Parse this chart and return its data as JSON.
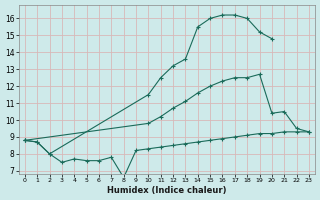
{
  "xlabel": "Humidex (Indice chaleur)",
  "xlim": [
    -0.5,
    23.5
  ],
  "ylim": [
    6.8,
    16.8
  ],
  "yticks": [
    7,
    8,
    9,
    10,
    11,
    12,
    13,
    14,
    15,
    16
  ],
  "xticks": [
    0,
    1,
    2,
    3,
    4,
    5,
    6,
    7,
    8,
    9,
    10,
    11,
    12,
    13,
    14,
    15,
    16,
    17,
    18,
    19,
    20,
    21,
    22,
    23
  ],
  "bg_color": "#ceeaea",
  "grid_color": "#b8d8d8",
  "line_color": "#1a6b5a",
  "curves": {
    "top": {
      "x": [
        0,
        1,
        2,
        10,
        11,
        12,
        13,
        14,
        15,
        16,
        17,
        18,
        19,
        20
      ],
      "y": [
        8.8,
        8.7,
        8.0,
        11.5,
        12.5,
        13.2,
        13.6,
        15.5,
        16.0,
        16.2,
        16.2,
        16.0,
        15.2,
        14.8
      ]
    },
    "mid": {
      "x": [
        0,
        10,
        11,
        12,
        13,
        14,
        15,
        16,
        17,
        18,
        19,
        20,
        21,
        22,
        23
      ],
      "y": [
        8.8,
        9.8,
        10.2,
        10.7,
        11.1,
        11.6,
        12.0,
        12.3,
        12.5,
        12.5,
        12.7,
        10.4,
        10.5,
        9.5,
        9.3
      ]
    },
    "bot": {
      "x": [
        0,
        1,
        2,
        3,
        4,
        5,
        6,
        7,
        8,
        9,
        10,
        11,
        12,
        13,
        14,
        15,
        16,
        17,
        18,
        19,
        20,
        21,
        22,
        23
      ],
      "y": [
        8.8,
        8.7,
        8.0,
        7.5,
        7.7,
        7.6,
        7.6,
        7.8,
        6.6,
        8.2,
        8.3,
        8.4,
        8.5,
        8.6,
        8.7,
        8.8,
        8.9,
        9.0,
        9.1,
        9.2,
        9.2,
        9.3,
        9.3,
        9.3
      ]
    }
  }
}
